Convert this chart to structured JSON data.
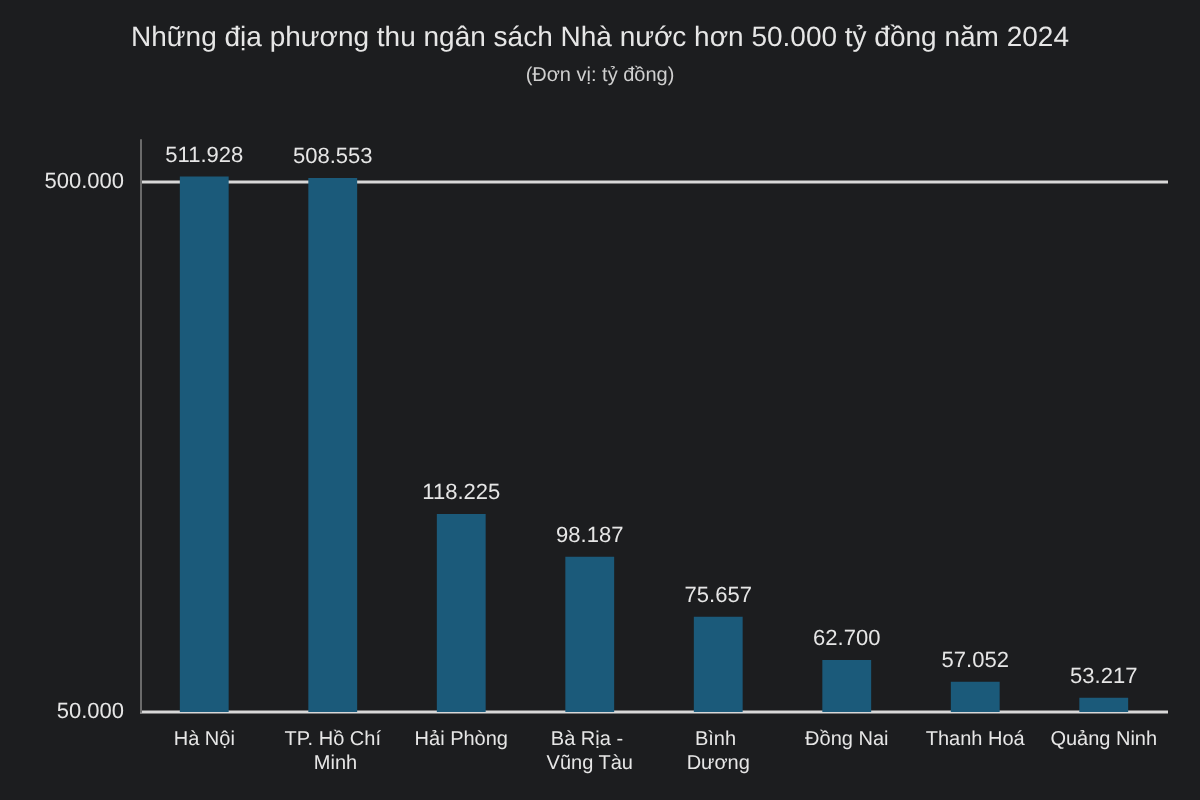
{
  "chart_data": {
    "type": "bar",
    "title": "Những địa phương thu ngân sách Nhà nước hơn 50.000 tỷ đồng năm 2024",
    "subtitle": "(Đơn vị: tỷ đồng)",
    "categories": [
      "Hà Nội",
      "TP. Hồ Chí Minh",
      "Hải Phòng",
      "Bà Rịa - Vũng Tàu",
      "Bình Dương",
      "Đồng Nai",
      "Thanh Hoá",
      "Quảng Ninh"
    ],
    "values": [
      511928,
      508553,
      118225,
      98187,
      75657,
      62700,
      57052,
      53217
    ],
    "value_labels": [
      "511.928",
      "508.553",
      "118.225",
      "98.187",
      "75.657",
      "62.700",
      "57.052",
      "53.217"
    ],
    "color": "#1b5a7a",
    "log": "y",
    "ylim": [
      50000,
      600000
    ],
    "yticks": [
      {
        "value": 50000,
        "label": "50.000"
      },
      {
        "value": 500000,
        "label": "500.000"
      }
    ],
    "grid": "y"
  }
}
